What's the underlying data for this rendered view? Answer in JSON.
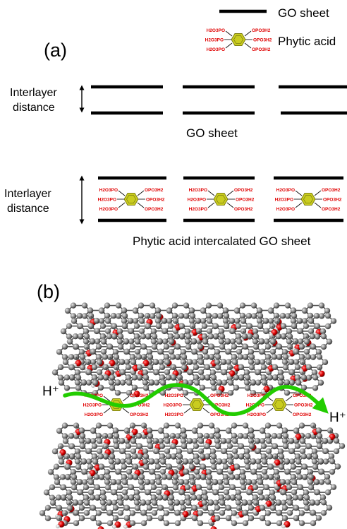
{
  "panel_a": {
    "label": "(a)",
    "legend_go": "GO sheet",
    "legend_phytic": "Phytic acid",
    "interlayer_label_line1": "Interlayer",
    "interlayer_label_line2": "distance",
    "go_caption": "GO sheet",
    "intercalated_caption": "Phytic acid intercalated GO sheet"
  },
  "molecule": {
    "groups": [
      "H2O3PO",
      "OPO3H2",
      "H2O3PO",
      "OPO3H2",
      "H2O3PO",
      "OPO3H2"
    ],
    "ring_color": "#c9cc1f",
    "group_color": "#e00000"
  },
  "panel_b": {
    "label": "(b)",
    "proton_left": "H⁺",
    "proton_right": "H⁺",
    "arrow_color": "#22cc00"
  }
}
